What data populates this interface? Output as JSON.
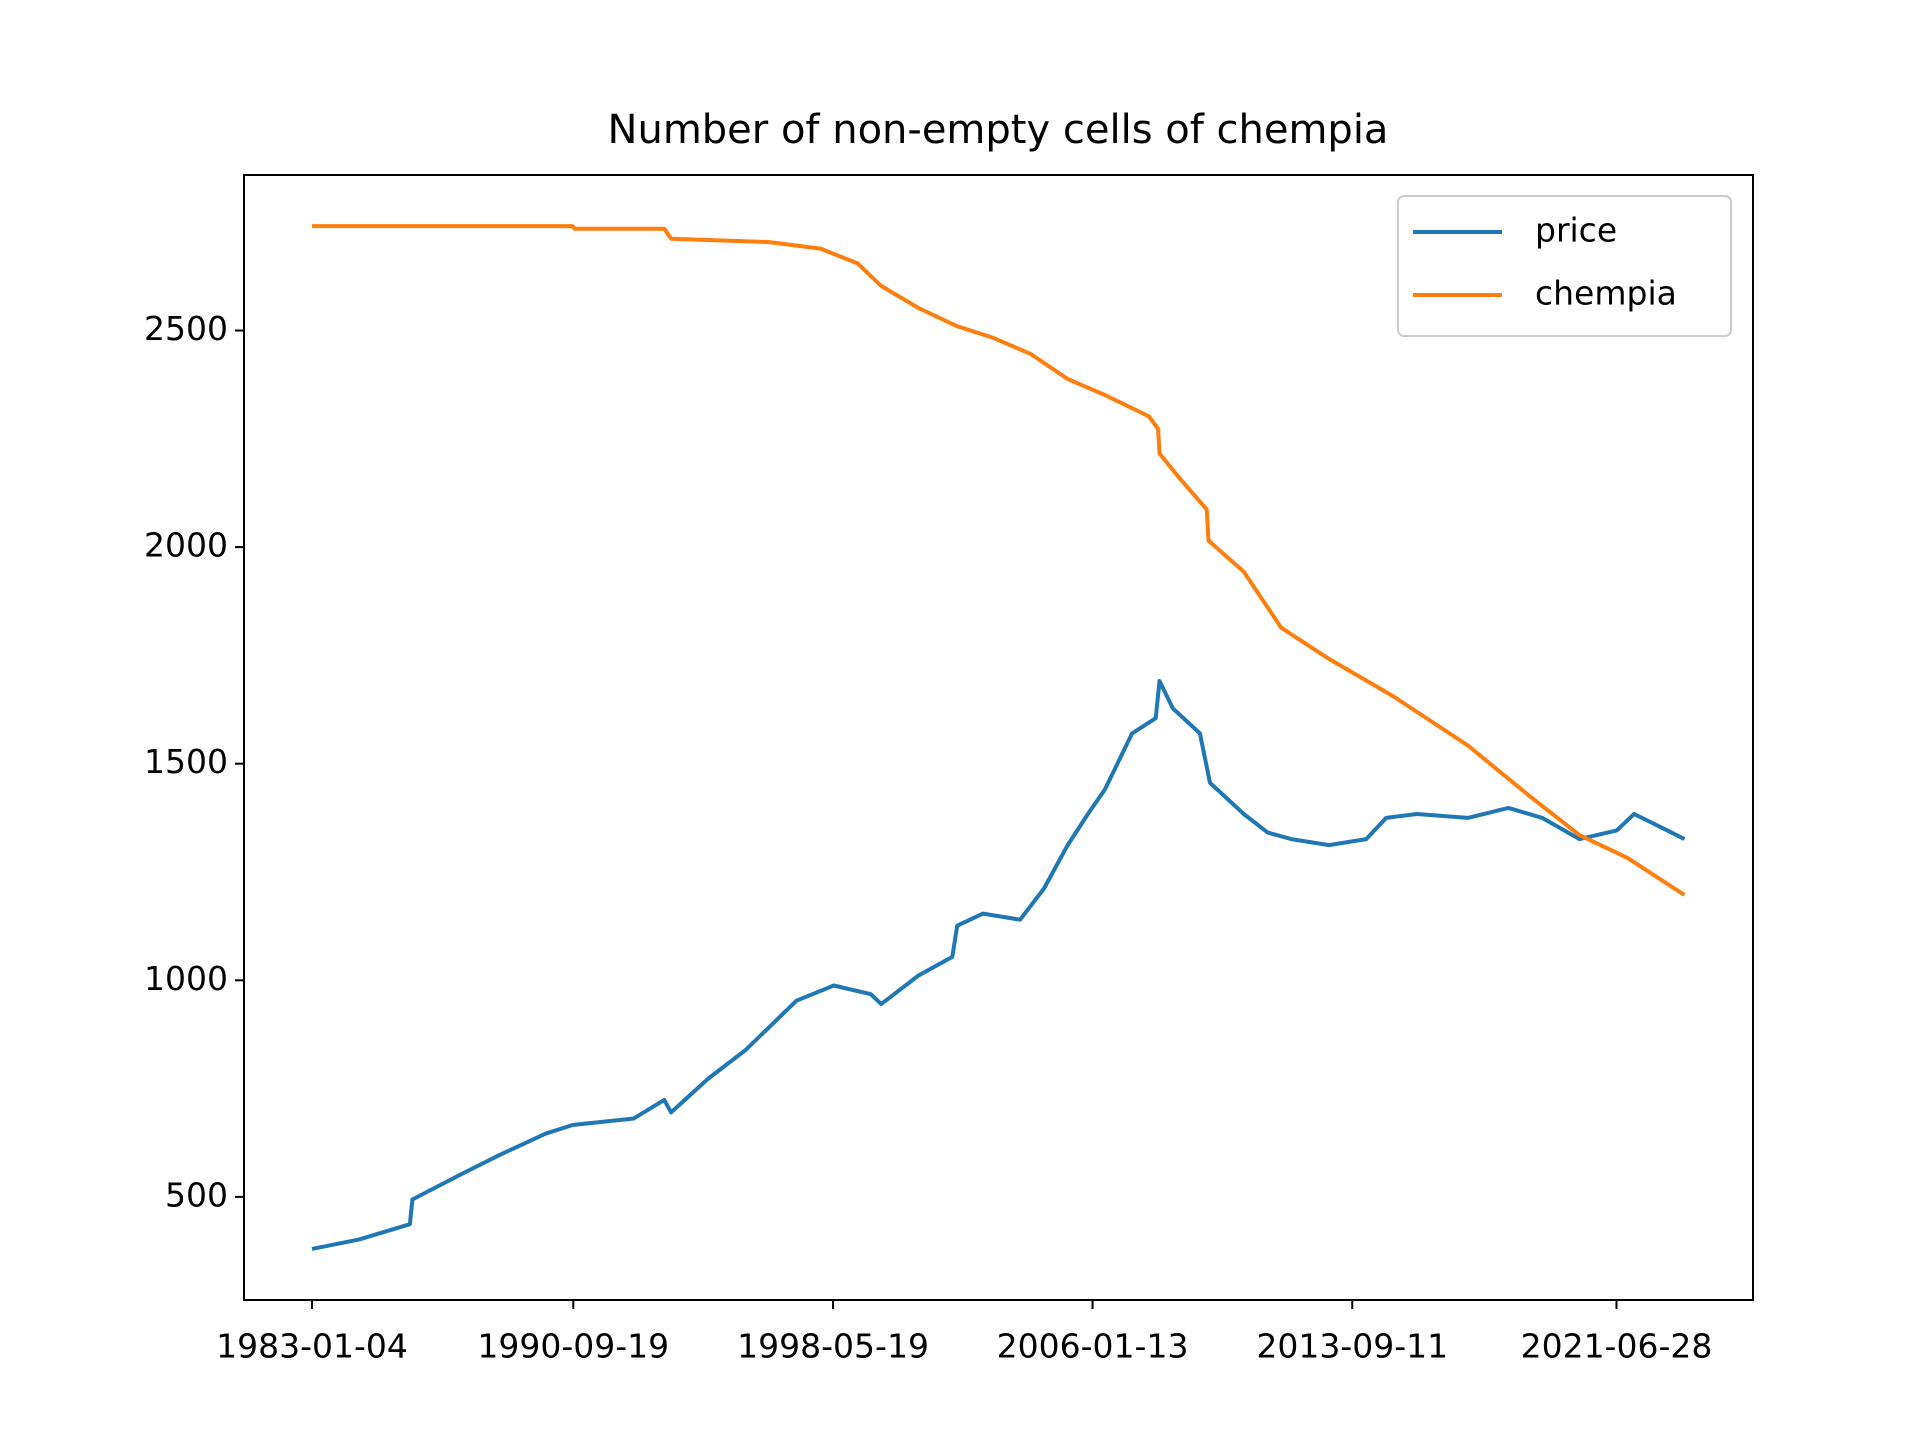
{
  "chart_data": {
    "type": "line",
    "title": "Number of non-empty cells of chempia",
    "xlim": [
      "1981-01-01",
      "2025-07-08"
    ],
    "xticks": [
      "1983-01-04",
      "1990-09-19",
      "1998-05-19",
      "2006-01-13",
      "2013-09-11",
      "2021-06-28"
    ],
    "ylim": [
      262,
      2859
    ],
    "yticks": [
      500,
      1000,
      1500,
      2000,
      2500
    ],
    "legend": "upper right",
    "series": [
      {
        "name": "price",
        "color": "#1f77b4",
        "x": [
          "1983-01-04",
          "1984-05-27",
          "1985-11-24",
          "1985-12-20",
          "1987-05-27",
          "1988-07-01",
          "1989-11-24",
          "1990-09-12",
          "1992-07-01",
          "1993-05-27",
          "1993-08-08",
          "1994-09-12",
          "1995-10-20",
          "1997-04-20",
          "1998-05-27",
          "1999-07-01",
          "1999-10-20",
          "2000-11-24",
          "2001-11-24",
          "2002-01-15",
          "2002-10-20",
          "2003-11-24",
          "2004-08-08",
          "2005-04-20",
          "2005-11-24",
          "2006-05-27",
          "2007-03-15",
          "2007-11-24",
          "2008-01-04",
          "2008-05-27",
          "2009-03-15",
          "2009-07-01",
          "2010-07-01",
          "2011-03-15",
          "2011-11-24",
          "2013-01-04",
          "2014-02-08",
          "2014-09-12",
          "2015-08-08",
          "2017-02-08",
          "2018-04-20",
          "2019-04-20",
          "2020-05-27",
          "2021-07-01",
          "2022-01-04",
          "2022-08-08",
          "2023-07-01"
        ],
        "values": [
          380,
          402,
          437,
          494,
          552,
          595,
          646,
          666,
          681,
          724,
          695,
          773,
          839,
          953,
          988,
          968,
          945,
          1011,
          1054,
          1126,
          1154,
          1140,
          1212,
          1312,
          1384,
          1441,
          1570,
          1605,
          1691,
          1628,
          1570,
          1456,
          1384,
          1341,
          1326,
          1312,
          1326,
          1375,
          1384,
          1375,
          1398,
          1375,
          1326,
          1346,
          1384,
          1361,
          1326
        ]
      },
      {
        "name": "chempia",
        "color": "#ff7f0e",
        "x": [
          "1983-01-04",
          "1990-09-12",
          "1990-10-01",
          "1993-05-27",
          "1993-08-08",
          "1996-07-01",
          "1998-01-04",
          "1999-02-08",
          "1999-10-20",
          "2000-11-24",
          "2002-01-04",
          "2003-02-08",
          "2004-03-15",
          "2005-04-20",
          "2006-05-27",
          "2007-09-12",
          "2007-12-20",
          "2008-01-04",
          "2008-08-08",
          "2009-05-27",
          "2009-06-15",
          "2010-07-01",
          "2011-08-08",
          "2013-01-04",
          "2014-11-24",
          "2017-02-08",
          "2018-11-24",
          "2020-05-27",
          "2021-10-20",
          "2023-07-01"
        ],
        "values": [
          2741,
          2741,
          2735,
          2735,
          2712,
          2704,
          2689,
          2655,
          2603,
          2552,
          2511,
          2483,
          2446,
          2388,
          2351,
          2302,
          2273,
          2216,
          2159,
          2087,
          2015,
          1943,
          1814,
          1742,
          1656,
          1542,
          1427,
          1335,
          1283,
          1197
        ]
      }
    ]
  }
}
